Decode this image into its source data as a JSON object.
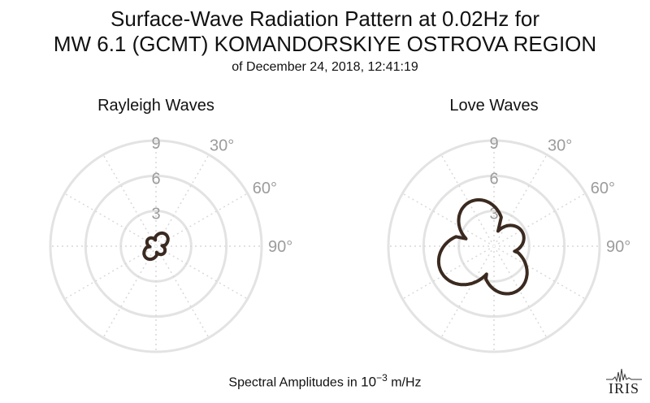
{
  "title": {
    "line1": "Surface-Wave Radiation Pattern at 0.02Hz for",
    "line2": "MW 6.1 (GCMT) KOMANDORSKIYE OSTROVA REGION",
    "line3": "of December 24, 2018, 12:41:19"
  },
  "chart_data": [
    {
      "type": "polar",
      "title": "Rayleigh Waves",
      "radial_ticks": [
        "3",
        "6",
        "9"
      ],
      "r_max": 9,
      "angle_ticks": [
        "30°",
        "60°",
        "90°"
      ],
      "grid": true,
      "series": [
        {
          "color": "#3b2a20",
          "pattern": {
            "type": "four-lobe",
            "lobes": [
              {
                "azimuth_deg": 40,
                "amplitude": 1.3
              },
              {
                "azimuth_deg": 130,
                "amplitude": 0.9
              },
              {
                "azimuth_deg": 220,
                "amplitude": 1.3
              },
              {
                "azimuth_deg": 310,
                "amplitude": 0.9
              }
            ]
          }
        }
      ]
    },
    {
      "type": "polar",
      "title": "Love Waves",
      "radial_ticks": [
        "3",
        "6",
        "9"
      ],
      "r_max": 9,
      "angle_ticks": [
        "30°",
        "60°",
        "90°"
      ],
      "grid": true,
      "series": [
        {
          "color": "#3b2a20",
          "pattern": {
            "type": "four-lobe",
            "lobes": [
              {
                "azimuth_deg": 330,
                "amplitude": 4.3
              },
              {
                "azimuth_deg": 65,
                "amplitude": 2.7
              },
              {
                "azimuth_deg": 155,
                "amplitude": 4.3
              },
              {
                "azimuth_deg": 245,
                "amplitude": 5.0
              }
            ]
          }
        }
      ]
    }
  ],
  "footer": {
    "label": "Spectral Amplitudes in ",
    "base": "10",
    "exponent": "−3",
    "unit": " m/Hz"
  },
  "logo": {
    "text": "IRIS"
  }
}
